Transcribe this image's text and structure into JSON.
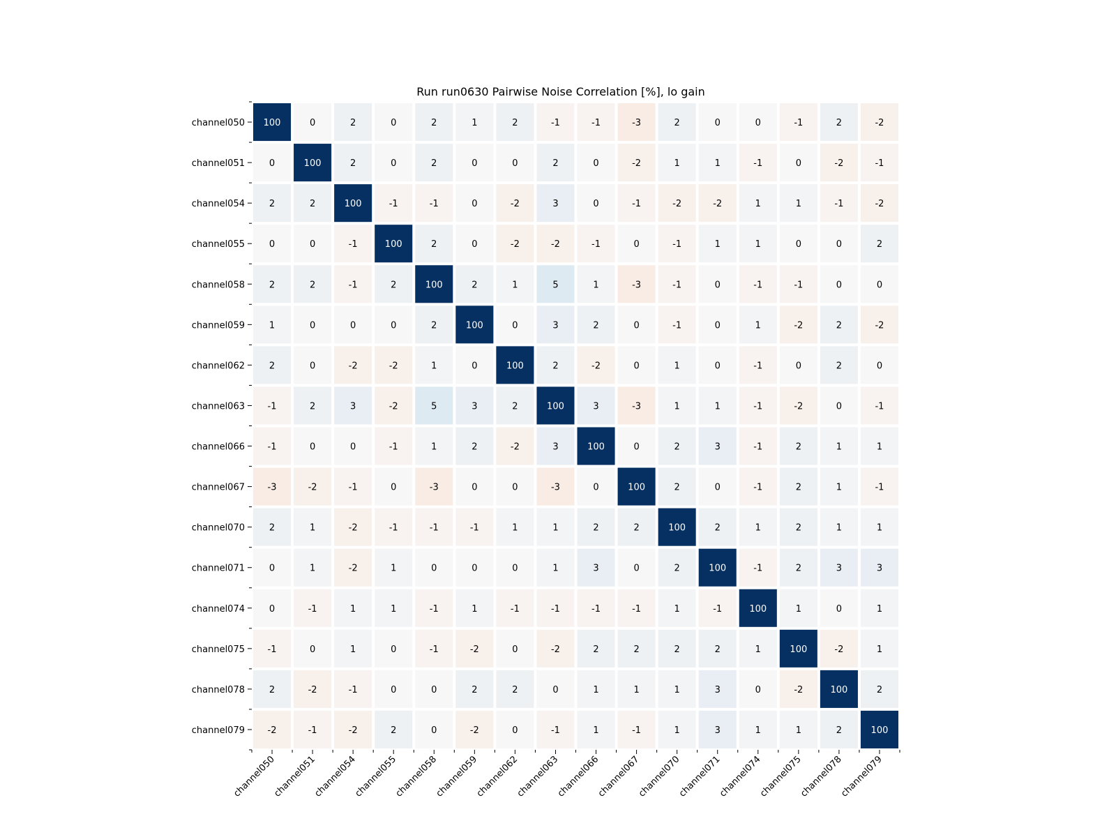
{
  "chart_data": {
    "type": "heatmap",
    "title": "Run run0630 Pairwise Noise Correlation [%], lo gain",
    "xlabel": "",
    "ylabel": "",
    "colormap": "RdBu",
    "vmin": -100,
    "vmax": 100,
    "colors": {
      "positive": "#053061",
      "neutral": "#f7f7f7",
      "negative": "#67001f",
      "grid": "#ffffff"
    },
    "x_labels": [
      "channel050",
      "channel051",
      "channel054",
      "channel055",
      "channel058",
      "channel059",
      "channel062",
      "channel063",
      "channel066",
      "channel067",
      "channel070",
      "channel071",
      "channel074",
      "channel075",
      "channel078",
      "channel079"
    ],
    "y_labels": [
      "channel050",
      "channel051",
      "channel054",
      "channel055",
      "channel058",
      "channel059",
      "channel062",
      "channel063",
      "channel066",
      "channel067",
      "channel070",
      "channel071",
      "channel074",
      "channel075",
      "channel078",
      "channel079"
    ],
    "values": [
      [
        100,
        0,
        2,
        0,
        2,
        1,
        2,
        -1,
        -1,
        -3,
        2,
        0,
        0,
        -1,
        2,
        -2
      ],
      [
        0,
        100,
        2,
        0,
        2,
        0,
        0,
        2,
        0,
        -2,
        1,
        1,
        -1,
        0,
        -2,
        -1
      ],
      [
        2,
        2,
        100,
        -1,
        -1,
        0,
        -2,
        3,
        0,
        -1,
        -2,
        -2,
        1,
        1,
        -1,
        -2
      ],
      [
        0,
        0,
        -1,
        100,
        2,
        0,
        -2,
        -2,
        -1,
        0,
        -1,
        1,
        1,
        0,
        0,
        2
      ],
      [
        2,
        2,
        -1,
        2,
        100,
        2,
        1,
        5,
        1,
        -3,
        -1,
        0,
        -1,
        -1,
        0,
        0
      ],
      [
        1,
        0,
        0,
        0,
        2,
        100,
        0,
        3,
        2,
        0,
        -1,
        0,
        1,
        -2,
        2,
        -2
      ],
      [
        2,
        0,
        -2,
        -2,
        1,
        0,
        100,
        2,
        -2,
        0,
        1,
        0,
        -1,
        0,
        2,
        0
      ],
      [
        -1,
        2,
        3,
        -2,
        5,
        3,
        2,
        100,
        3,
        -3,
        1,
        1,
        -1,
        -2,
        0,
        -1
      ],
      [
        -1,
        0,
        0,
        -1,
        1,
        2,
        -2,
        3,
        100,
        0,
        2,
        3,
        -1,
        2,
        1,
        1
      ],
      [
        -3,
        -2,
        -1,
        0,
        -3,
        0,
        0,
        -3,
        0,
        100,
        2,
        0,
        -1,
        2,
        1,
        -1
      ],
      [
        2,
        1,
        -2,
        -1,
        -1,
        -1,
        1,
        1,
        2,
        2,
        100,
        2,
        1,
        2,
        1,
        1
      ],
      [
        0,
        1,
        -2,
        1,
        0,
        0,
        0,
        1,
        3,
        0,
        2,
        100,
        -1,
        2,
        3,
        3
      ],
      [
        0,
        -1,
        1,
        1,
        -1,
        1,
        -1,
        -1,
        -1,
        -1,
        1,
        -1,
        100,
        1,
        0,
        1
      ],
      [
        -1,
        0,
        1,
        0,
        -1,
        -2,
        0,
        -2,
        2,
        2,
        2,
        2,
        1,
        100,
        -2,
        1
      ],
      [
        2,
        -2,
        -1,
        0,
        0,
        2,
        2,
        0,
        1,
        1,
        1,
        3,
        0,
        -2,
        100,
        2
      ],
      [
        -2,
        -1,
        -2,
        2,
        0,
        -2,
        0,
        -1,
        1,
        -1,
        1,
        3,
        1,
        1,
        2,
        100
      ]
    ]
  }
}
